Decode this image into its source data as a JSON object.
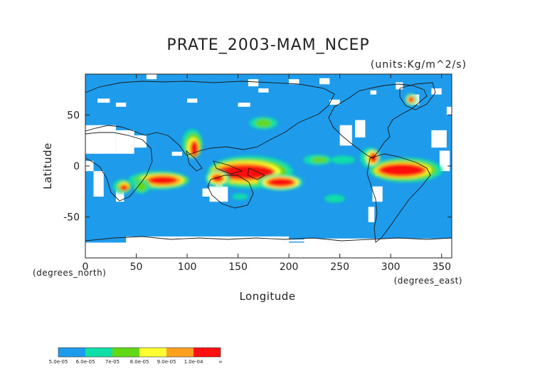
{
  "chart_data": {
    "type": "heatmap",
    "title": "PRATE_2003-MAM_NCEP",
    "units": "(units:Kg/m^2/s)",
    "xlabel": "Longitude",
    "ylabel": "Latitude",
    "x_unit_label": "(degrees_east)",
    "y_unit_label": "(degrees_north)",
    "xlim": [
      0,
      360
    ],
    "ylim": [
      -90,
      90
    ],
    "x_ticks": [
      "0",
      "50",
      "100",
      "150",
      "200",
      "250",
      "300",
      "350"
    ],
    "y_ticks": [
      "50",
      "0",
      "-50"
    ],
    "colorbar": {
      "levels": [
        "5.0e-05",
        "6.0e-05",
        "7e-05",
        "8.0e-05",
        "9.0e-05",
        "1.0e-04",
        "∞"
      ],
      "colors": [
        "#1e9bea",
        "#11dfa8",
        "#63d816",
        "#ffff33",
        "#ffa020",
        "#ff1010"
      ]
    },
    "background_color": "#1e9bea",
    "no_data_color": "#ffffff"
  }
}
